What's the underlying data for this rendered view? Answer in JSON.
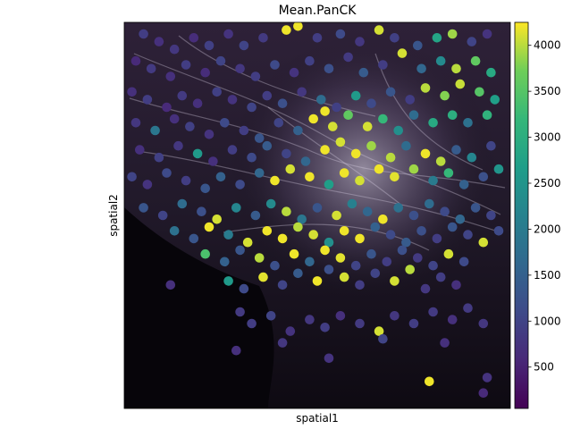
{
  "chart_data": {
    "type": "scatter",
    "title": "Mean.PanCK",
    "xlabel": "spatial1",
    "ylabel": "spatial2",
    "colorbar": {
      "colormap": "viridis",
      "min": 50,
      "max": 4250,
      "ticks": [
        500,
        1000,
        1500,
        2000,
        2500,
        3000,
        3500,
        4000
      ],
      "tick_labels": [
        "500",
        "1000",
        "1500",
        "2000",
        "2500",
        "3000",
        "3500",
        "4000"
      ]
    },
    "background": "fluorescence microscopy image (dark purple tissue with bright white fibers, darker lower-left region)",
    "x_ticks_visible": false,
    "y_ticks_visible": false,
    "points": [
      [
        0.05,
        0.97,
        900
      ],
      [
        0.09,
        0.95,
        700
      ],
      [
        0.13,
        0.93,
        800
      ],
      [
        0.18,
        0.96,
        650
      ],
      [
        0.22,
        0.94,
        950
      ],
      [
        0.27,
        0.97,
        750
      ],
      [
        0.31,
        0.94,
        1000
      ],
      [
        0.36,
        0.96,
        850
      ],
      [
        0.42,
        0.98,
        4200
      ],
      [
        0.45,
        0.99,
        4200
      ],
      [
        0.5,
        0.96,
        900
      ],
      [
        0.56,
        0.97,
        1100
      ],
      [
        0.61,
        0.95,
        800
      ],
      [
        0.66,
        0.98,
        4100
      ],
      [
        0.7,
        0.96,
        950
      ],
      [
        0.76,
        0.94,
        1300
      ],
      [
        0.81,
        0.96,
        2800
      ],
      [
        0.85,
        0.97,
        3900
      ],
      [
        0.9,
        0.95,
        1000
      ],
      [
        0.94,
        0.97,
        750
      ],
      [
        0.03,
        0.9,
        600
      ],
      [
        0.07,
        0.88,
        850
      ],
      [
        0.12,
        0.86,
        700
      ],
      [
        0.16,
        0.89,
        900
      ],
      [
        0.21,
        0.87,
        650
      ],
      [
        0.25,
        0.9,
        1000
      ],
      [
        0.3,
        0.88,
        800
      ],
      [
        0.34,
        0.86,
        900
      ],
      [
        0.39,
        0.89,
        1100
      ],
      [
        0.44,
        0.87,
        750
      ],
      [
        0.48,
        0.9,
        950
      ],
      [
        0.53,
        0.88,
        1200
      ],
      [
        0.58,
        0.91,
        850
      ],
      [
        0.62,
        0.87,
        1400
      ],
      [
        0.67,
        0.89,
        900
      ],
      [
        0.72,
        0.92,
        4100
      ],
      [
        0.77,
        0.88,
        1600
      ],
      [
        0.82,
        0.9,
        2300
      ],
      [
        0.86,
        0.88,
        4000
      ],
      [
        0.91,
        0.9,
        3600
      ],
      [
        0.95,
        0.87,
        2900
      ],
      [
        0.02,
        0.82,
        700
      ],
      [
        0.06,
        0.8,
        900
      ],
      [
        0.11,
        0.78,
        600
      ],
      [
        0.15,
        0.81,
        850
      ],
      [
        0.19,
        0.79,
        700
      ],
      [
        0.24,
        0.82,
        950
      ],
      [
        0.28,
        0.8,
        750
      ],
      [
        0.33,
        0.78,
        1000
      ],
      [
        0.37,
        0.81,
        900
      ],
      [
        0.41,
        0.79,
        1200
      ],
      [
        0.46,
        0.82,
        800
      ],
      [
        0.51,
        0.8,
        1700
      ],
      [
        0.55,
        0.78,
        950
      ],
      [
        0.6,
        0.81,
        2600
      ],
      [
        0.64,
        0.79,
        1100
      ],
      [
        0.69,
        0.82,
        1300
      ],
      [
        0.74,
        0.8,
        900
      ],
      [
        0.78,
        0.83,
        4000
      ],
      [
        0.83,
        0.81,
        3800
      ],
      [
        0.87,
        0.84,
        4050
      ],
      [
        0.92,
        0.82,
        3500
      ],
      [
        0.96,
        0.8,
        2700
      ],
      [
        0.03,
        0.74,
        800
      ],
      [
        0.08,
        0.72,
        1900
      ],
      [
        0.13,
        0.75,
        700
      ],
      [
        0.17,
        0.73,
        950
      ],
      [
        0.22,
        0.71,
        750
      ],
      [
        0.26,
        0.74,
        1100
      ],
      [
        0.31,
        0.72,
        900
      ],
      [
        0.35,
        0.7,
        1300
      ],
      [
        0.4,
        0.74,
        1000
      ],
      [
        0.45,
        0.72,
        1500
      ],
      [
        0.49,
        0.75,
        4200
      ],
      [
        0.52,
        0.77,
        4200
      ],
      [
        0.54,
        0.73,
        4100
      ],
      [
        0.58,
        0.76,
        3600
      ],
      [
        0.63,
        0.73,
        4100
      ],
      [
        0.67,
        0.75,
        3200
      ],
      [
        0.71,
        0.72,
        2400
      ],
      [
        0.75,
        0.76,
        1700
      ],
      [
        0.8,
        0.74,
        2900
      ],
      [
        0.85,
        0.76,
        3000
      ],
      [
        0.89,
        0.74,
        1800
      ],
      [
        0.94,
        0.76,
        3100
      ],
      [
        0.04,
        0.67,
        700
      ],
      [
        0.09,
        0.65,
        950
      ],
      [
        0.14,
        0.68,
        800
      ],
      [
        0.19,
        0.66,
        2600
      ],
      [
        0.23,
        0.64,
        700
      ],
      [
        0.28,
        0.67,
        900
      ],
      [
        0.33,
        0.65,
        1100
      ],
      [
        0.37,
        0.68,
        1400
      ],
      [
        0.42,
        0.66,
        1000
      ],
      [
        0.47,
        0.64,
        1600
      ],
      [
        0.52,
        0.67,
        4200
      ],
      [
        0.56,
        0.69,
        4100
      ],
      [
        0.6,
        0.66,
        4200
      ],
      [
        0.64,
        0.68,
        3900
      ],
      [
        0.69,
        0.65,
        4000
      ],
      [
        0.73,
        0.68,
        1700
      ],
      [
        0.78,
        0.66,
        4200
      ],
      [
        0.82,
        0.64,
        4000
      ],
      [
        0.86,
        0.67,
        1400
      ],
      [
        0.9,
        0.65,
        2200
      ],
      [
        0.95,
        0.68,
        1000
      ],
      [
        0.02,
        0.6,
        1000
      ],
      [
        0.06,
        0.58,
        750
      ],
      [
        0.11,
        0.61,
        1100
      ],
      [
        0.16,
        0.59,
        900
      ],
      [
        0.21,
        0.57,
        1300
      ],
      [
        0.25,
        0.6,
        1500
      ],
      [
        0.3,
        0.58,
        1100
      ],
      [
        0.35,
        0.61,
        1600
      ],
      [
        0.39,
        0.59,
        4200
      ],
      [
        0.43,
        0.62,
        4100
      ],
      [
        0.48,
        0.6,
        4200
      ],
      [
        0.53,
        0.58,
        2700
      ],
      [
        0.57,
        0.61,
        4200
      ],
      [
        0.61,
        0.59,
        4100
      ],
      [
        0.66,
        0.62,
        4200
      ],
      [
        0.7,
        0.6,
        4150
      ],
      [
        0.75,
        0.62,
        3900
      ],
      [
        0.8,
        0.59,
        2000
      ],
      [
        0.84,
        0.61,
        3200
      ],
      [
        0.88,
        0.58,
        1500
      ],
      [
        0.93,
        0.6,
        1200
      ],
      [
        0.97,
        0.62,
        2500
      ],
      [
        0.05,
        0.52,
        1300
      ],
      [
        0.1,
        0.5,
        1000
      ],
      [
        0.15,
        0.53,
        1700
      ],
      [
        0.2,
        0.51,
        1200
      ],
      [
        0.24,
        0.49,
        4100
      ],
      [
        0.29,
        0.52,
        2200
      ],
      [
        0.34,
        0.5,
        1400
      ],
      [
        0.38,
        0.53,
        2300
      ],
      [
        0.42,
        0.51,
        4000
      ],
      [
        0.46,
        0.49,
        1900
      ],
      [
        0.5,
        0.52,
        1300
      ],
      [
        0.55,
        0.5,
        4100
      ],
      [
        0.59,
        0.53,
        2100
      ],
      [
        0.63,
        0.51,
        1600
      ],
      [
        0.67,
        0.49,
        4200
      ],
      [
        0.71,
        0.52,
        1800
      ],
      [
        0.75,
        0.5,
        1200
      ],
      [
        0.79,
        0.53,
        1700
      ],
      [
        0.83,
        0.51,
        1100
      ],
      [
        0.87,
        0.49,
        1600
      ],
      [
        0.91,
        0.52,
        1300
      ],
      [
        0.95,
        0.5,
        1000
      ],
      [
        0.13,
        0.46,
        1800
      ],
      [
        0.18,
        0.44,
        1300
      ],
      [
        0.22,
        0.47,
        4200
      ],
      [
        0.27,
        0.45,
        2000
      ],
      [
        0.32,
        0.43,
        4100
      ],
      [
        0.37,
        0.46,
        4200
      ],
      [
        0.41,
        0.44,
        4200
      ],
      [
        0.45,
        0.47,
        4000
      ],
      [
        0.49,
        0.45,
        4100
      ],
      [
        0.53,
        0.43,
        2400
      ],
      [
        0.57,
        0.46,
        4200
      ],
      [
        0.61,
        0.44,
        4200
      ],
      [
        0.65,
        0.47,
        1500
      ],
      [
        0.69,
        0.45,
        1100
      ],
      [
        0.73,
        0.43,
        1400
      ],
      [
        0.77,
        0.46,
        1200
      ],
      [
        0.81,
        0.44,
        900
      ],
      [
        0.85,
        0.47,
        1300
      ],
      [
        0.89,
        0.45,
        1000
      ],
      [
        0.93,
        0.43,
        4100
      ],
      [
        0.97,
        0.46,
        1100
      ],
      [
        0.21,
        0.4,
        3400
      ],
      [
        0.26,
        0.38,
        1500
      ],
      [
        0.3,
        0.41,
        1300
      ],
      [
        0.35,
        0.39,
        4000
      ],
      [
        0.39,
        0.37,
        1200
      ],
      [
        0.44,
        0.4,
        4200
      ],
      [
        0.48,
        0.38,
        1600
      ],
      [
        0.52,
        0.41,
        4200
      ],
      [
        0.56,
        0.39,
        4150
      ],
      [
        0.6,
        0.37,
        1000
      ],
      [
        0.64,
        0.4,
        1300
      ],
      [
        0.68,
        0.38,
        900
      ],
      [
        0.72,
        0.41,
        1200
      ],
      [
        0.76,
        0.39,
        850
      ],
      [
        0.8,
        0.37,
        1000
      ],
      [
        0.84,
        0.4,
        4100
      ],
      [
        0.88,
        0.38,
        1100
      ],
      [
        0.27,
        0.33,
        2600
      ],
      [
        0.31,
        0.31,
        1100
      ],
      [
        0.36,
        0.34,
        4150
      ],
      [
        0.41,
        0.32,
        1000
      ],
      [
        0.45,
        0.35,
        1400
      ],
      [
        0.5,
        0.33,
        4200
      ],
      [
        0.53,
        0.36,
        1200
      ],
      [
        0.57,
        0.34,
        4100
      ],
      [
        0.61,
        0.32,
        900
      ],
      [
        0.65,
        0.35,
        1000
      ],
      [
        0.7,
        0.33,
        4100
      ],
      [
        0.74,
        0.36,
        4000
      ],
      [
        0.78,
        0.31,
        800
      ],
      [
        0.82,
        0.34,
        900
      ],
      [
        0.86,
        0.32,
        700
      ],
      [
        0.12,
        0.32,
        700
      ],
      [
        0.3,
        0.25,
        850
      ],
      [
        0.33,
        0.22,
        900
      ],
      [
        0.38,
        0.24,
        1000
      ],
      [
        0.43,
        0.2,
        750
      ],
      [
        0.48,
        0.23,
        800
      ],
      [
        0.52,
        0.21,
        900
      ],
      [
        0.56,
        0.24,
        700
      ],
      [
        0.61,
        0.22,
        850
      ],
      [
        0.66,
        0.2,
        4100
      ],
      [
        0.7,
        0.24,
        800
      ],
      [
        0.75,
        0.22,
        900
      ],
      [
        0.8,
        0.25,
        850
      ],
      [
        0.85,
        0.23,
        700
      ],
      [
        0.89,
        0.26,
        850
      ],
      [
        0.93,
        0.22,
        800
      ],
      [
        0.41,
        0.17,
        800
      ],
      [
        0.67,
        0.18,
        1000
      ],
      [
        0.83,
        0.17,
        700
      ],
      [
        0.79,
        0.07,
        4200
      ],
      [
        0.93,
        0.04,
        600
      ],
      [
        0.94,
        0.08,
        750
      ],
      [
        0.29,
        0.15,
        700
      ],
      [
        0.53,
        0.13,
        750
      ]
    ]
  }
}
